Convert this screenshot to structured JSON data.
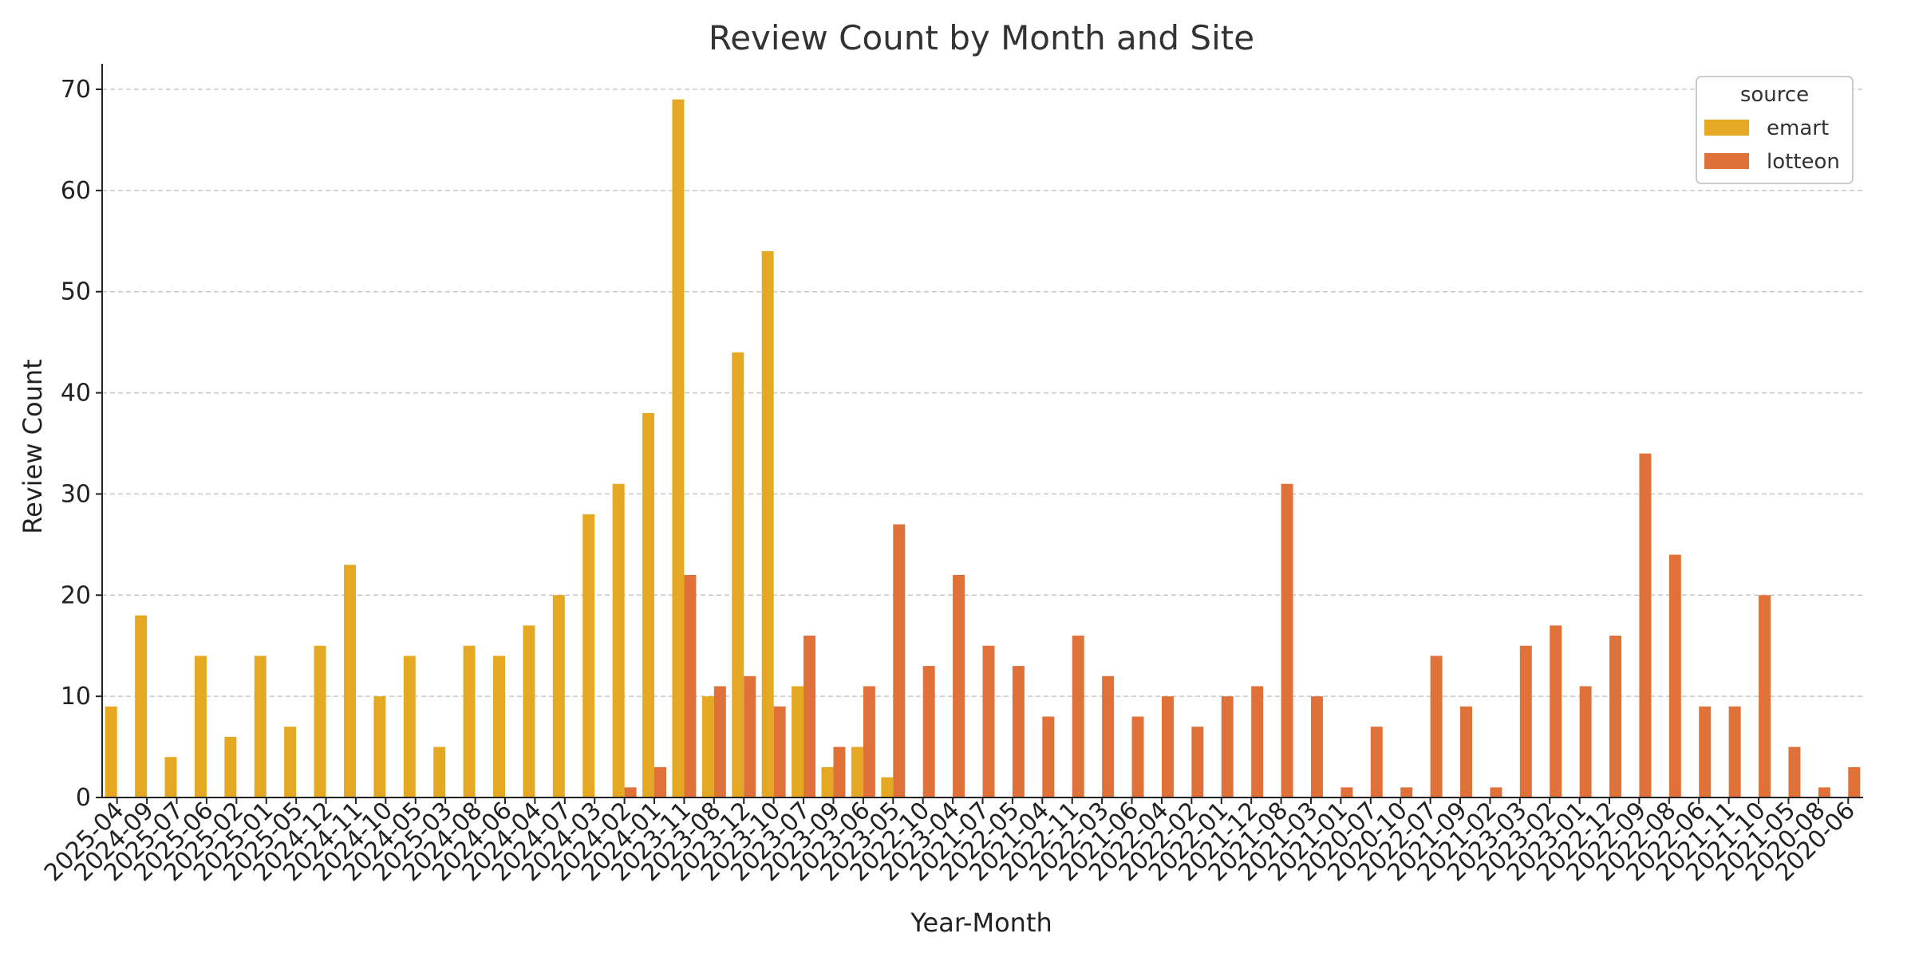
{
  "chart_data": {
    "type": "bar",
    "title": "Review Count by Month and Site",
    "xlabel": "Year-Month",
    "ylabel": "Review Count",
    "ylim": [
      0,
      72
    ],
    "yticks": [
      0,
      10,
      20,
      30,
      40,
      50,
      60,
      70
    ],
    "grid": true,
    "legend": {
      "title": "source",
      "placement": "top-right"
    },
    "categories": [
      "2025-04",
      "2024-09",
      "2025-07",
      "2025-06",
      "2025-02",
      "2025-01",
      "2025-05",
      "2024-12",
      "2024-11",
      "2024-10",
      "2024-05",
      "2025-03",
      "2024-08",
      "2024-06",
      "2024-04",
      "2024-07",
      "2024-03",
      "2024-02",
      "2024-01",
      "2023-11",
      "2023-08",
      "2023-12",
      "2023-10",
      "2023-07",
      "2023-09",
      "2023-06",
      "2023-05",
      "2022-10",
      "2023-04",
      "2021-07",
      "2022-05",
      "2021-04",
      "2022-11",
      "2022-03",
      "2021-06",
      "2022-04",
      "2022-02",
      "2022-01",
      "2021-12",
      "2021-08",
      "2021-03",
      "2021-01",
      "2020-07",
      "2020-10",
      "2022-07",
      "2021-09",
      "2021-02",
      "2023-03",
      "2023-02",
      "2023-01",
      "2022-12",
      "2022-09",
      "2022-08",
      "2022-06",
      "2021-11",
      "2021-10",
      "2021-05",
      "2020-08",
      "2020-06"
    ],
    "series": [
      {
        "name": "emart",
        "color": "#E5A823",
        "values": [
          9,
          18,
          4,
          14,
          6,
          14,
          7,
          15,
          23,
          10,
          14,
          5,
          15,
          14,
          17,
          20,
          28,
          31,
          38,
          69,
          10,
          44,
          54,
          11,
          3,
          5,
          2,
          0,
          0,
          0,
          0,
          0,
          0,
          0,
          0,
          0,
          0,
          0,
          0,
          0,
          0,
          0,
          0,
          0,
          0,
          0,
          0,
          0,
          0,
          0,
          0,
          0,
          0,
          0,
          0,
          0,
          0,
          0,
          0
        ]
      },
      {
        "name": "lotteon",
        "color": "#E07139",
        "values": [
          0,
          0,
          0,
          0,
          0,
          0,
          0,
          0,
          0,
          0,
          0,
          0,
          0,
          0,
          0,
          0,
          0,
          1,
          3,
          22,
          11,
          12,
          9,
          16,
          5,
          11,
          27,
          13,
          22,
          15,
          13,
          8,
          16,
          12,
          8,
          10,
          7,
          10,
          11,
          31,
          10,
          1,
          7,
          1,
          14,
          9,
          1,
          15,
          17,
          11,
          16,
          34,
          24,
          9,
          9,
          20,
          5,
          1,
          3
        ]
      }
    ]
  }
}
